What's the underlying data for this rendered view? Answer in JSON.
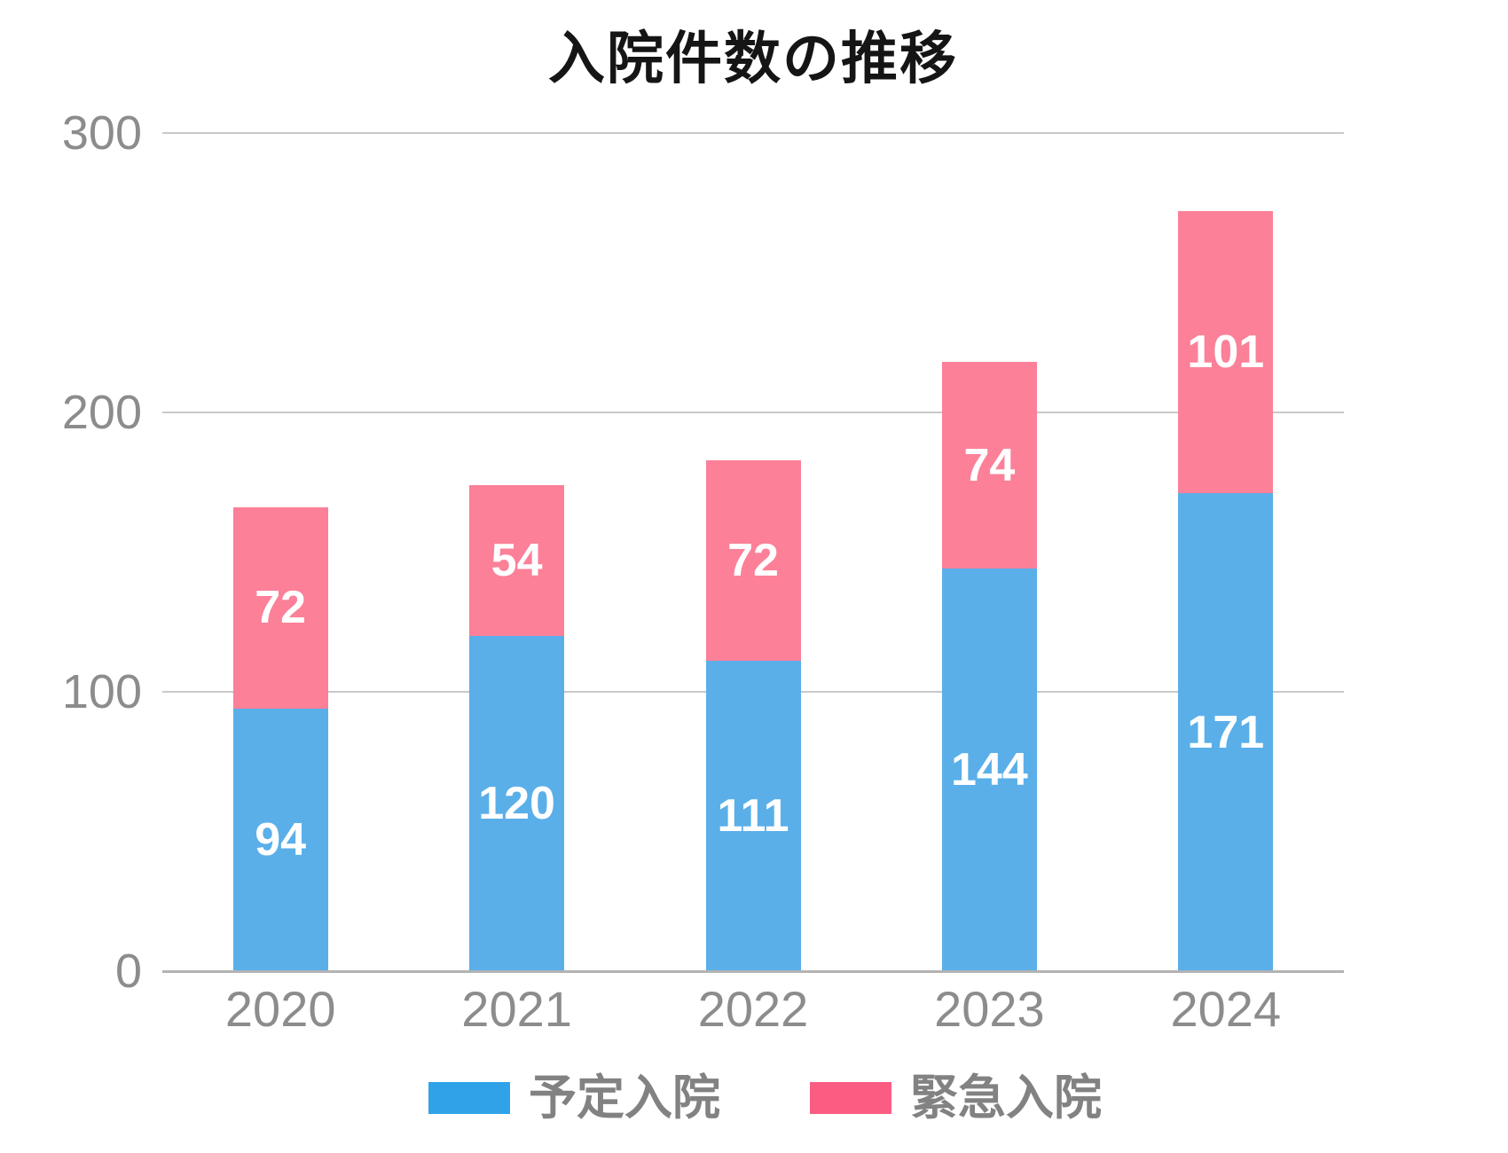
{
  "chart_data": {
    "type": "bar",
    "stacked": true,
    "title": "入院件数の推移",
    "categories": [
      "2020",
      "2021",
      "2022",
      "2023",
      "2024"
    ],
    "series": [
      {
        "name": "予定入院",
        "values": [
          94,
          120,
          111,
          144,
          171
        ],
        "bar_color": "#5aafe9",
        "legend_color": "#30a2e8"
      },
      {
        "name": "緊急入院",
        "values": [
          72,
          54,
          72,
          74,
          101
        ],
        "bar_color": "#fb8098",
        "legend_color": "#fa5c82"
      }
    ],
    "totals": [
      166,
      174,
      183,
      218,
      272
    ],
    "y_ticks": [
      0,
      100,
      200,
      300
    ],
    "ylim": [
      0,
      300
    ],
    "grid": true,
    "value_labels": "white, centered inside each segment",
    "legend_position": "bottom",
    "xlabel": "",
    "ylabel": ""
  },
  "colors": {
    "background": "#ffffff",
    "title_text": "#151515",
    "axis_text": "#8c8c8c",
    "gridline": "#c9c9c9",
    "baseline": "#b3b3b3",
    "value_label_text": "#ffffff",
    "legend_text": "#828282"
  }
}
